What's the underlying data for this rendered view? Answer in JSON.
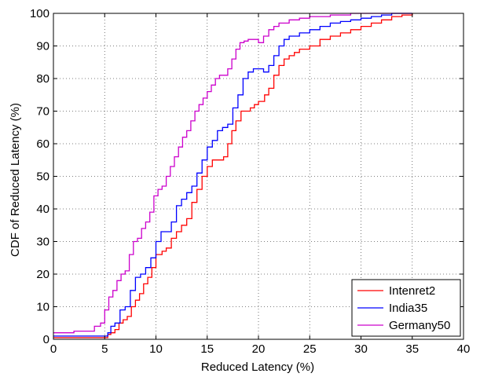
{
  "chart_data": {
    "type": "line",
    "title": "",
    "xlabel": "Reduced Latency (%)",
    "ylabel": "CDF of Reduced Latency (%)",
    "xlim": [
      0,
      40
    ],
    "ylim": [
      0,
      100
    ],
    "xticks": [
      0,
      5,
      10,
      15,
      20,
      25,
      30,
      35,
      40
    ],
    "yticks": [
      0,
      10,
      20,
      30,
      40,
      50,
      60,
      70,
      80,
      90,
      100
    ],
    "grid": true,
    "grid_style": "dotted",
    "legend_position": "bottom-right",
    "step": true,
    "series": [
      {
        "name": "Intenret2",
        "color": "#ff0000",
        "points": [
          [
            0,
            0.5
          ],
          [
            5,
            0.5
          ],
          [
            5.3,
            1.5
          ],
          [
            5.6,
            2
          ],
          [
            6,
            3
          ],
          [
            6.4,
            5
          ],
          [
            6.8,
            6
          ],
          [
            7.2,
            7
          ],
          [
            7.6,
            10
          ],
          [
            8,
            12
          ],
          [
            8.4,
            14
          ],
          [
            8.8,
            17
          ],
          [
            9.2,
            19
          ],
          [
            9.6,
            22
          ],
          [
            10,
            26
          ],
          [
            10.6,
            27
          ],
          [
            11,
            28
          ],
          [
            11.5,
            31
          ],
          [
            12,
            33
          ],
          [
            12.5,
            35
          ],
          [
            13,
            37
          ],
          [
            13.5,
            42
          ],
          [
            14,
            46
          ],
          [
            14.5,
            50
          ],
          [
            15,
            53
          ],
          [
            15.5,
            55
          ],
          [
            16,
            55
          ],
          [
            16.6,
            56
          ],
          [
            17,
            60
          ],
          [
            17.4,
            64
          ],
          [
            17.8,
            67
          ],
          [
            18.3,
            70
          ],
          [
            18.8,
            70
          ],
          [
            19.2,
            71
          ],
          [
            19.6,
            72
          ],
          [
            20,
            73
          ],
          [
            20.6,
            75
          ],
          [
            21,
            77
          ],
          [
            21.5,
            81
          ],
          [
            22,
            84
          ],
          [
            22.5,
            86
          ],
          [
            23,
            87
          ],
          [
            23.5,
            88
          ],
          [
            24,
            89
          ],
          [
            25,
            90
          ],
          [
            26,
            92
          ],
          [
            27,
            93
          ],
          [
            28,
            94
          ],
          [
            29,
            95
          ],
          [
            30,
            96
          ],
          [
            31,
            97
          ],
          [
            32,
            98
          ],
          [
            33,
            99
          ],
          [
            34,
            99.5
          ],
          [
            35,
            100
          ]
        ]
      },
      {
        "name": "India35",
        "color": "#0000ff",
        "points": [
          [
            0,
            1
          ],
          [
            5,
            1
          ],
          [
            5.3,
            2
          ],
          [
            5.6,
            4
          ],
          [
            6,
            5
          ],
          [
            6.5,
            9
          ],
          [
            7,
            10
          ],
          [
            7.5,
            15
          ],
          [
            8,
            19
          ],
          [
            8.5,
            20
          ],
          [
            9,
            22
          ],
          [
            9.5,
            25
          ],
          [
            10,
            30
          ],
          [
            10.5,
            33
          ],
          [
            11,
            33
          ],
          [
            11.5,
            36
          ],
          [
            12,
            41
          ],
          [
            12.5,
            43
          ],
          [
            13,
            45
          ],
          [
            13.5,
            47
          ],
          [
            14,
            51
          ],
          [
            14.5,
            55
          ],
          [
            15,
            59
          ],
          [
            15.5,
            61
          ],
          [
            16,
            64
          ],
          [
            16.5,
            65
          ],
          [
            17,
            66
          ],
          [
            17.5,
            71
          ],
          [
            18,
            75
          ],
          [
            18.5,
            80
          ],
          [
            19,
            82
          ],
          [
            19.5,
            83
          ],
          [
            20,
            83
          ],
          [
            20.5,
            82
          ],
          [
            21,
            84
          ],
          [
            21.5,
            87
          ],
          [
            22,
            90
          ],
          [
            22.5,
            92
          ],
          [
            23,
            93
          ],
          [
            24,
            94
          ],
          [
            25,
            95
          ],
          [
            26,
            96
          ],
          [
            27,
            97
          ],
          [
            28,
            97.5
          ],
          [
            29,
            98
          ],
          [
            30,
            98.5
          ],
          [
            31,
            99
          ],
          [
            32,
            99.5
          ],
          [
            33,
            100
          ],
          [
            35,
            100
          ]
        ]
      },
      {
        "name": "Germany50",
        "color": "#cc00cc",
        "points": [
          [
            0,
            2
          ],
          [
            2,
            2.5
          ],
          [
            4,
            4
          ],
          [
            4.6,
            5
          ],
          [
            5,
            9
          ],
          [
            5.4,
            13
          ],
          [
            5.8,
            15
          ],
          [
            6.2,
            18
          ],
          [
            6.6,
            20
          ],
          [
            7,
            21
          ],
          [
            7.4,
            26
          ],
          [
            7.8,
            30
          ],
          [
            8.2,
            31
          ],
          [
            8.6,
            34
          ],
          [
            9,
            36
          ],
          [
            9.4,
            39
          ],
          [
            9.8,
            44
          ],
          [
            10.2,
            46
          ],
          [
            10.6,
            47
          ],
          [
            11,
            50
          ],
          [
            11.4,
            53
          ],
          [
            11.8,
            56
          ],
          [
            12.2,
            59
          ],
          [
            12.6,
            62
          ],
          [
            13,
            64
          ],
          [
            13.4,
            67
          ],
          [
            13.8,
            70
          ],
          [
            14.2,
            72
          ],
          [
            14.6,
            74
          ],
          [
            15,
            76
          ],
          [
            15.4,
            78
          ],
          [
            15.8,
            80
          ],
          [
            16.2,
            81
          ],
          [
            16.6,
            81
          ],
          [
            17,
            83
          ],
          [
            17.4,
            86
          ],
          [
            17.8,
            89
          ],
          [
            18.2,
            91
          ],
          [
            18.6,
            91.5
          ],
          [
            19,
            92
          ],
          [
            19.5,
            92
          ],
          [
            20,
            91
          ],
          [
            20.5,
            93
          ],
          [
            21,
            95
          ],
          [
            21.5,
            96
          ],
          [
            22,
            97
          ],
          [
            23,
            98
          ],
          [
            24,
            98.5
          ],
          [
            25,
            99
          ],
          [
            27,
            99.5
          ],
          [
            29,
            100
          ],
          [
            35,
            100
          ]
        ]
      }
    ]
  }
}
